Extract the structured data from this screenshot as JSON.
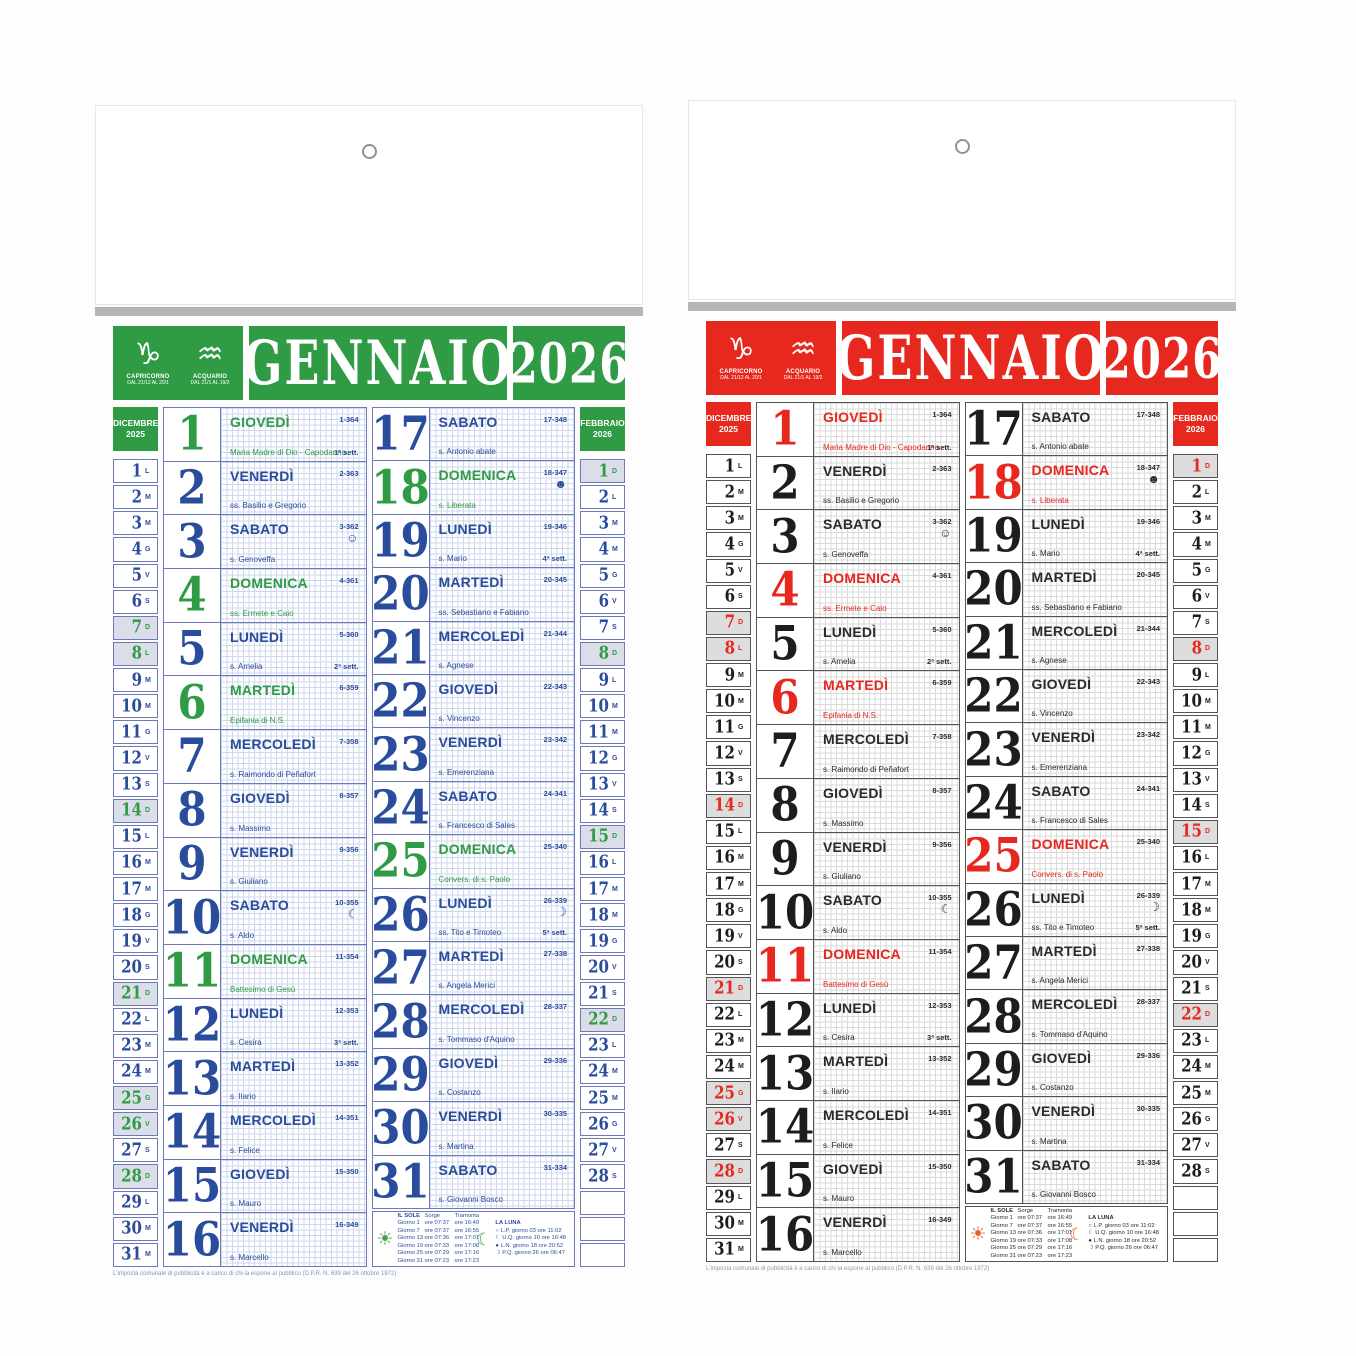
{
  "shared": {
    "month": "GENNAIO",
    "year": "2026",
    "zodiac": [
      {
        "icon": "capricorn-icon",
        "glyph": "♑",
        "name": "CAPRICORNO",
        "dates": "DAL 21/12 AL 20/1"
      },
      {
        "icon": "aquarius-icon",
        "glyph": "♒",
        "name": "ACQUARIO",
        "dates": "DAL 21/1 AL 19/2"
      }
    ],
    "prev_month": {
      "title_lines": [
        "DICEMBRE",
        "2025"
      ],
      "days": [
        {
          "n": "1",
          "w": "L"
        },
        {
          "n": "2",
          "w": "M"
        },
        {
          "n": "3",
          "w": "M"
        },
        {
          "n": "4",
          "w": "G"
        },
        {
          "n": "5",
          "w": "V"
        },
        {
          "n": "6",
          "w": "S"
        },
        {
          "n": "7",
          "w": "D",
          "hl": true
        },
        {
          "n": "8",
          "w": "L",
          "hl": true
        },
        {
          "n": "9",
          "w": "M"
        },
        {
          "n": "10",
          "w": "M"
        },
        {
          "n": "11",
          "w": "G"
        },
        {
          "n": "12",
          "w": "V"
        },
        {
          "n": "13",
          "w": "S"
        },
        {
          "n": "14",
          "w": "D",
          "hl": true
        },
        {
          "n": "15",
          "w": "L"
        },
        {
          "n": "16",
          "w": "M"
        },
        {
          "n": "17",
          "w": "M"
        },
        {
          "n": "18",
          "w": "G"
        },
        {
          "n": "19",
          "w": "V"
        },
        {
          "n": "20",
          "w": "S"
        },
        {
          "n": "21",
          "w": "D",
          "hl": true
        },
        {
          "n": "22",
          "w": "L"
        },
        {
          "n": "23",
          "w": "M"
        },
        {
          "n": "24",
          "w": "M"
        },
        {
          "n": "25",
          "w": "G",
          "hl": true
        },
        {
          "n": "26",
          "w": "V",
          "hl": true
        },
        {
          "n": "27",
          "w": "S"
        },
        {
          "n": "28",
          "w": "D",
          "hl": true
        },
        {
          "n": "29",
          "w": "L"
        },
        {
          "n": "30",
          "w": "M"
        },
        {
          "n": "31",
          "w": "M"
        }
      ],
      "empty_cells": 0
    },
    "next_month": {
      "title_lines": [
        "FEBBRAIO",
        "2026"
      ],
      "days": [
        {
          "n": "1",
          "w": "D",
          "hl": true
        },
        {
          "n": "2",
          "w": "L"
        },
        {
          "n": "3",
          "w": "M"
        },
        {
          "n": "4",
          "w": "M"
        },
        {
          "n": "5",
          "w": "G"
        },
        {
          "n": "6",
          "w": "V"
        },
        {
          "n": "7",
          "w": "S"
        },
        {
          "n": "8",
          "w": "D",
          "hl": true
        },
        {
          "n": "9",
          "w": "L"
        },
        {
          "n": "10",
          "w": "M"
        },
        {
          "n": "11",
          "w": "M"
        },
        {
          "n": "12",
          "w": "G"
        },
        {
          "n": "13",
          "w": "V"
        },
        {
          "n": "14",
          "w": "S"
        },
        {
          "n": "15",
          "w": "D",
          "hl": true
        },
        {
          "n": "16",
          "w": "L"
        },
        {
          "n": "17",
          "w": "M"
        },
        {
          "n": "18",
          "w": "M"
        },
        {
          "n": "19",
          "w": "G"
        },
        {
          "n": "20",
          "w": "V"
        },
        {
          "n": "21",
          "w": "S"
        },
        {
          "n": "22",
          "w": "D",
          "hl": true
        },
        {
          "n": "23",
          "w": "L"
        },
        {
          "n": "24",
          "w": "M"
        },
        {
          "n": "25",
          "w": "M"
        },
        {
          "n": "26",
          "w": "G"
        },
        {
          "n": "27",
          "w": "V"
        },
        {
          "n": "28",
          "w": "S"
        }
      ],
      "empty_cells": 3
    },
    "days": [
      {
        "n": "1",
        "name": "GIOVEDÌ",
        "doy": "1-364",
        "saint": "Maria Madre di Dio - Capodanno",
        "week": "1ª sett.",
        "holiday": true
      },
      {
        "n": "2",
        "name": "VENERDÌ",
        "doy": "2-363",
        "saint": "ss. Basilio e Gregorio"
      },
      {
        "n": "3",
        "name": "SABATO",
        "doy": "3-362",
        "saint": "s. Genoveffa",
        "moon": "☺"
      },
      {
        "n": "4",
        "name": "DOMENICA",
        "doy": "4-361",
        "saint": "ss. Ermete e Caio",
        "holiday": true
      },
      {
        "n": "5",
        "name": "LUNEDÌ",
        "doy": "5-360",
        "saint": "s. Amelia",
        "week": "2ª sett."
      },
      {
        "n": "6",
        "name": "MARTEDÌ",
        "doy": "6-359",
        "saint": "Epifania di N.S.",
        "holiday": true
      },
      {
        "n": "7",
        "name": "MERCOLEDÌ",
        "doy": "7-358",
        "saint": "s. Raimondo di Peñafort"
      },
      {
        "n": "8",
        "name": "GIOVEDÌ",
        "doy": "8-357",
        "saint": "s. Massimo"
      },
      {
        "n": "9",
        "name": "VENERDÌ",
        "doy": "9-356",
        "saint": "s. Giuliano"
      },
      {
        "n": "10",
        "name": "SABATO",
        "doy": "10-355",
        "saint": "s. Aldo",
        "moon": "☾"
      },
      {
        "n": "11",
        "name": "DOMENICA",
        "doy": "11-354",
        "saint": "Battesimo di Gesù",
        "holiday": true
      },
      {
        "n": "12",
        "name": "LUNEDÌ",
        "doy": "12-353",
        "saint": "s. Cesira",
        "week": "3ª sett."
      },
      {
        "n": "13",
        "name": "MARTEDÌ",
        "doy": "13-352",
        "saint": "s. Ilario"
      },
      {
        "n": "14",
        "name": "MERCOLEDÌ",
        "doy": "14-351",
        "saint": "s. Felice"
      },
      {
        "n": "15",
        "name": "GIOVEDÌ",
        "doy": "15-350",
        "saint": "s. Mauro"
      },
      {
        "n": "16",
        "name": "VENERDÌ",
        "doy": "16-349",
        "saint": "s. Marcello"
      },
      {
        "n": "17",
        "name": "SABATO",
        "doy": "17-348",
        "saint": "s. Antonio abate"
      },
      {
        "n": "18",
        "name": "DOMENICA",
        "doy": "18-347",
        "saint": "s. Liberata",
        "holiday": true,
        "moon": "☻"
      },
      {
        "n": "19",
        "name": "LUNEDÌ",
        "doy": "19-346",
        "saint": "s. Mario",
        "week": "4ª sett."
      },
      {
        "n": "20",
        "name": "MARTEDÌ",
        "doy": "20-345",
        "saint": "ss. Sebastiano e Fabiano"
      },
      {
        "n": "21",
        "name": "MERCOLEDÌ",
        "doy": "21-344",
        "saint": "s. Agnese"
      },
      {
        "n": "22",
        "name": "GIOVEDÌ",
        "doy": "22-343",
        "saint": "s. Vincenzo"
      },
      {
        "n": "23",
        "name": "VENERDÌ",
        "doy": "23-342",
        "saint": "s. Emerenziana"
      },
      {
        "n": "24",
        "name": "SABATO",
        "doy": "24-341",
        "saint": "s. Francesco di Sales"
      },
      {
        "n": "25",
        "name": "DOMENICA",
        "doy": "25-340",
        "saint": "Convers. di s. Paolo",
        "holiday": true
      },
      {
        "n": "26",
        "name": "LUNEDÌ",
        "doy": "26-339",
        "saint": "ss. Tito e Timoteo",
        "week": "5ª sett.",
        "moon": "☽"
      },
      {
        "n": "27",
        "name": "MARTEDÌ",
        "doy": "27-338",
        "saint": "s. Angela Merici"
      },
      {
        "n": "28",
        "name": "MERCOLEDÌ",
        "doy": "28-337",
        "saint": "s. Tommaso d'Aquino"
      },
      {
        "n": "29",
        "name": "GIOVEDÌ",
        "doy": "29-336",
        "saint": "s. Costanzo"
      },
      {
        "n": "30",
        "name": "VENERDÌ",
        "doy": "30-335",
        "saint": "s. Martina"
      },
      {
        "n": "31",
        "name": "SABATO",
        "doy": "31-334",
        "saint": "s. Giovanni Bosco"
      }
    ],
    "sun": {
      "title": "IL SOLE",
      "col1": "Sorge",
      "col2": "Tramonta",
      "rows": [
        [
          "Giorno 1",
          "ore 07:37",
          "ore 16:49"
        ],
        [
          "Giorno 7",
          "ore 07:37",
          "ore 16:55"
        ],
        [
          "Giorno 13",
          "ore 07:36",
          "ore 17:01"
        ],
        [
          "Giorno 19",
          "ore 07:33",
          "ore 17:08"
        ],
        [
          "Giorno 25",
          "ore 07:29",
          "ore 17:16"
        ],
        [
          "Giorno 31",
          "ore 07:23",
          "ore 17:23"
        ]
      ]
    },
    "moon": {
      "title": "LA LUNA",
      "rows": [
        [
          "○",
          "L.P.",
          "giorno 03 ore 11:02"
        ],
        [
          "☾",
          "U.Q.",
          "giorno 10 ore 16:48"
        ],
        [
          "●",
          "L.N.",
          "giorno 18 ore 20:52"
        ],
        [
          "☽",
          "P.Q.",
          "giorno 26 ore 06:47"
        ]
      ]
    },
    "fine_print": "L'imposta comunale di pubblicità è a carico di chi la espone al pubblico (D.P.R. N. 639 del 26 ottobre 1972)"
  },
  "calendars": [
    {
      "id": "green",
      "colors": {
        "accent": "#2f9b45",
        "num": "#2a4c9c",
        "holiday": "#2f9b45",
        "txt": "#2a4c9c",
        "border": "#6d79b8",
        "grid": "#cdd7ee",
        "hl": "#dbdde9",
        "ficon": "#43a04c",
        "fine": "#8a93c2"
      }
    },
    {
      "id": "red",
      "colors": {
        "accent": "#e6281e",
        "num": "#1d1d1b",
        "holiday": "#e6281e",
        "txt": "#2b2b2b",
        "border": "#555555",
        "grid": "#dadada",
        "hl": "#dddddd",
        "ficon": "#e2622c",
        "fine": "#9b9b9b"
      }
    }
  ]
}
